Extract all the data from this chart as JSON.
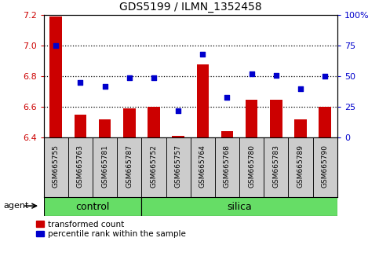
{
  "title": "GDS5199 / ILMN_1352458",
  "samples": [
    "GSM665755",
    "GSM665763",
    "GSM665781",
    "GSM665787",
    "GSM665752",
    "GSM665757",
    "GSM665764",
    "GSM665768",
    "GSM665780",
    "GSM665783",
    "GSM665789",
    "GSM665790"
  ],
  "bar_values": [
    7.19,
    6.55,
    6.52,
    6.59,
    6.6,
    6.41,
    6.88,
    6.44,
    6.65,
    6.65,
    6.52,
    6.6
  ],
  "percentile_values": [
    75,
    45,
    42,
    49,
    49,
    22,
    68,
    33,
    52,
    51,
    40,
    50
  ],
  "bar_color": "#cc0000",
  "point_color": "#0000cc",
  "ylim_left": [
    6.4,
    7.2
  ],
  "ylim_right": [
    0,
    100
  ],
  "yticks_left": [
    6.4,
    6.6,
    6.8,
    7.0,
    7.2
  ],
  "yticks_right": [
    0,
    25,
    50,
    75,
    100
  ],
  "ytick_labels_right": [
    "0",
    "25",
    "50",
    "75",
    "100%"
  ],
  "grid_values": [
    7.0,
    6.8,
    6.6
  ],
  "green_color": "#66dd66",
  "gray_color": "#cccccc",
  "agent_label": "agent",
  "group_label_control": "control",
  "group_label_silica": "silica",
  "legend_bar_label": "transformed count",
  "legend_point_label": "percentile rank within the sample",
  "red_color": "#cc0000",
  "blue_color": "#0000cc",
  "n_control": 4,
  "n_total": 12,
  "bar_width": 0.5
}
